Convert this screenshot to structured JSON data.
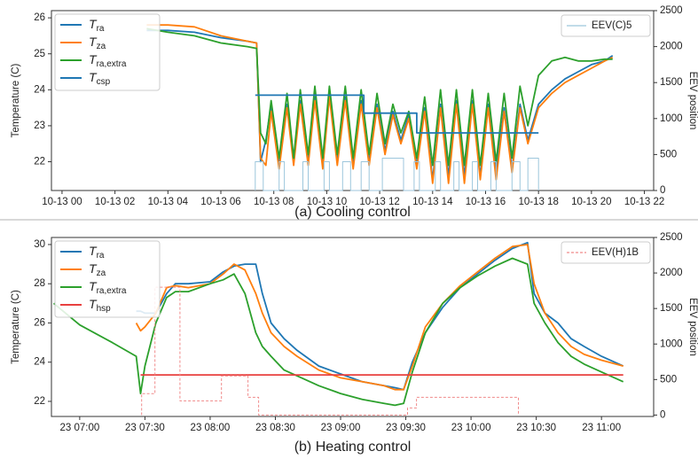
{
  "chart_data": [
    {
      "type": "line",
      "title": "(a) Cooling control",
      "ylabel": "Temperature (C)",
      "y2label": "EEV position",
      "label_style": "math",
      "xlim": [
        -0.4,
        22.35
      ],
      "xticks": [
        {
          "value": 0,
          "label": "10-13 00"
        },
        {
          "value": 2,
          "label": "10-13 02"
        },
        {
          "value": 4,
          "label": "10-13 04"
        },
        {
          "value": 6,
          "label": "10-13 06"
        },
        {
          "value": 8,
          "label": "10-13 08"
        },
        {
          "value": 10,
          "label": "10-13 10"
        },
        {
          "value": 12,
          "label": "10-13 12"
        },
        {
          "value": 14,
          "label": "10-13 14"
        },
        {
          "value": 16,
          "label": "10-13 16"
        },
        {
          "value": 18,
          "label": "10-13 18"
        },
        {
          "value": 20,
          "label": "10-13 20"
        },
        {
          "value": 22,
          "label": "10-13 22"
        }
      ],
      "ylim": [
        21.2,
        26.2
      ],
      "yticks": [
        22,
        23,
        24,
        25,
        26
      ],
      "y2lim": [
        0,
        2500
      ],
      "y2ticks": [
        0,
        500,
        1000,
        1500,
        2000,
        2500
      ],
      "x": [
        3.2,
        4.0,
        5.0,
        6.0,
        7.0,
        7.35,
        7.5,
        7.7,
        7.9,
        8.2,
        8.5,
        8.75,
        9.0,
        9.3,
        9.55,
        9.85,
        10.1,
        10.4,
        10.7,
        11.0,
        11.3,
        11.6,
        11.9,
        12.2,
        12.5,
        12.8,
        13.1,
        13.4,
        13.7,
        14.0,
        14.3,
        14.6,
        14.9,
        15.2,
        15.5,
        15.8,
        16.1,
        16.4,
        16.7,
        17.0,
        17.3,
        17.6,
        18.0,
        18.5,
        19.0,
        19.5,
        20.0,
        20.5,
        20.8
      ],
      "series": [
        {
          "name": "Tra",
          "color": "#1f77b4",
          "values": [
            25.65,
            25.65,
            25.6,
            25.45,
            25.35,
            25.3,
            22.0,
            22.6,
            23.6,
            21.9,
            23.6,
            22.0,
            23.7,
            22.0,
            23.8,
            21.9,
            23.9,
            22.0,
            23.8,
            21.9,
            23.7,
            22.0,
            23.6,
            22.3,
            23.4,
            22.6,
            23.3,
            21.9,
            23.5,
            21.5,
            23.6,
            21.6,
            23.7,
            21.6,
            23.7,
            21.6,
            23.6,
            21.7,
            23.5,
            21.8,
            23.6,
            22.6,
            23.6,
            24.0,
            24.3,
            24.5,
            24.7,
            24.8,
            24.95
          ]
        },
        {
          "name": "Tza",
          "color": "#ff7f0e",
          "values": [
            25.8,
            25.8,
            25.75,
            25.5,
            25.35,
            25.3,
            22.1,
            21.9,
            23.4,
            21.8,
            23.5,
            21.9,
            23.6,
            21.9,
            23.7,
            21.8,
            23.8,
            21.9,
            23.7,
            21.8,
            23.6,
            21.9,
            23.5,
            22.2,
            23.3,
            22.5,
            23.2,
            21.8,
            23.4,
            21.4,
            23.5,
            21.4,
            23.6,
            21.4,
            23.6,
            21.5,
            23.5,
            21.5,
            23.4,
            21.7,
            23.5,
            22.5,
            23.5,
            23.9,
            24.2,
            24.4,
            24.6,
            24.8,
            24.9
          ]
        },
        {
          "name": "Tra,extra",
          "color": "#2ca02c",
          "values": [
            25.7,
            25.6,
            25.5,
            25.3,
            25.2,
            25.15,
            22.8,
            22.5,
            23.7,
            22.1,
            23.9,
            22.1,
            24.0,
            22.2,
            24.1,
            22.1,
            24.1,
            22.2,
            24.1,
            22.1,
            24.0,
            22.2,
            23.9,
            22.5,
            23.6,
            22.8,
            23.4,
            22.1,
            23.8,
            21.9,
            24.0,
            21.9,
            24.0,
            21.9,
            24.0,
            21.9,
            23.9,
            22.0,
            23.9,
            22.1,
            24.1,
            23.0,
            24.4,
            24.8,
            24.9,
            24.8,
            24.8,
            24.85,
            24.85
          ]
        },
        {
          "name": "Tcsp",
          "color": "#1f77b4",
          "x": [
            7.3,
            11.4,
            11.4,
            13.4,
            13.4,
            18.0
          ],
          "values": [
            23.85,
            23.85,
            23.35,
            23.35,
            22.8,
            22.8
          ]
        },
        {
          "name": "EEV(C)5",
          "color": "#9cc6dc",
          "axis": "y2",
          "linestyle": "solid",
          "x": [
            7.3,
            7.3,
            7.6,
            7.6,
            8.2,
            8.2,
            8.4,
            8.4,
            9.1,
            9.1,
            9.3,
            9.3,
            9.9,
            9.9,
            10.1,
            10.1,
            10.6,
            10.6,
            10.9,
            10.9,
            11.3,
            11.3,
            11.6,
            11.6,
            12.1,
            12.1,
            12.9,
            12.9,
            13.3,
            13.3,
            13.5,
            13.5,
            14.1,
            14.1,
            14.3,
            14.3,
            14.8,
            14.8,
            15.0,
            15.0,
            15.5,
            15.5,
            15.7,
            15.7,
            16.2,
            16.2,
            16.4,
            16.4,
            17.0,
            17.0,
            17.3,
            17.3,
            17.6,
            17.6,
            18.0,
            18.0
          ],
          "values": [
            0,
            400,
            400,
            0,
            0,
            400,
            400,
            0,
            0,
            400,
            400,
            0,
            0,
            400,
            400,
            0,
            0,
            400,
            400,
            0,
            0,
            400,
            400,
            0,
            0,
            450,
            450,
            0,
            0,
            400,
            400,
            0,
            0,
            400,
            400,
            0,
            0,
            400,
            400,
            0,
            0,
            400,
            400,
            0,
            0,
            400,
            400,
            0,
            0,
            400,
            400,
            0,
            0,
            450,
            450,
            0
          ]
        }
      ]
    },
    {
      "type": "line",
      "title": "(b) Heating control",
      "ylabel": "Temperature (C)",
      "y2label": "EEV position",
      "label_style": "math",
      "xlim": [
        -13,
        264
      ],
      "xticks": [
        {
          "value": 0,
          "label": "23 07:00"
        },
        {
          "value": 30,
          "label": "23 07:30"
        },
        {
          "value": 60,
          "label": "23 08:00"
        },
        {
          "value": 90,
          "label": "23 08:30"
        },
        {
          "value": 120,
          "label": "23 09:00"
        },
        {
          "value": 150,
          "label": "23 09:30"
        },
        {
          "value": 180,
          "label": "23 10:00"
        },
        {
          "value": 210,
          "label": "23 10:30"
        },
        {
          "value": 240,
          "label": "23 11:00"
        }
      ],
      "ylim": [
        21.23,
        30.36
      ],
      "yticks": [
        22,
        24,
        26,
        28,
        30
      ],
      "y2lim": [
        -20,
        2500
      ],
      "y2ticks": [
        0,
        500,
        1000,
        1500,
        2000,
        2500
      ],
      "x": [
        -12,
        0,
        15,
        26,
        28,
        30,
        35,
        40,
        44,
        50,
        60,
        66,
        71,
        76,
        81,
        84,
        88,
        94,
        100,
        110,
        120,
        130,
        140,
        145,
        149,
        153,
        159,
        167,
        175,
        183,
        191,
        199,
        206,
        209,
        214,
        220,
        226,
        232,
        240,
        250
      ],
      "series": [
        {
          "name": "Tra",
          "color": "#1f77b4",
          "values": [
            null,
            null,
            null,
            26.6,
            26.6,
            26.5,
            26.5,
            27.5,
            28.0,
            28.0,
            28.1,
            28.6,
            28.9,
            29.0,
            29.0,
            27.5,
            26.0,
            25.2,
            24.6,
            23.8,
            23.4,
            23.0,
            22.8,
            22.7,
            22.6,
            24.0,
            25.5,
            26.8,
            27.8,
            28.5,
            29.2,
            29.8,
            30.1,
            27.5,
            26.5,
            26.0,
            25.2,
            24.8,
            24.3,
            23.8
          ]
        },
        {
          "name": "Tza",
          "color": "#ff7f0e",
          "values": [
            null,
            null,
            null,
            26.0,
            25.6,
            25.8,
            26.5,
            27.8,
            27.9,
            27.8,
            28.0,
            28.5,
            29.0,
            28.7,
            27.5,
            26.5,
            25.5,
            24.8,
            24.3,
            23.6,
            23.2,
            23.0,
            22.8,
            22.6,
            22.6,
            23.8,
            25.8,
            27.0,
            27.9,
            28.6,
            29.3,
            29.9,
            30.0,
            28.0,
            26.5,
            25.5,
            24.8,
            24.4,
            24.1,
            23.8
          ]
        },
        {
          "name": "Tra,extra",
          "color": "#2ca02c",
          "values": [
            27.0,
            25.9,
            25.0,
            24.3,
            22.4,
            23.8,
            26.0,
            27.3,
            27.6,
            27.6,
            28.0,
            28.2,
            28.5,
            27.5,
            25.5,
            24.8,
            24.3,
            23.6,
            23.3,
            22.8,
            22.4,
            22.1,
            21.9,
            21.8,
            21.9,
            23.5,
            25.5,
            27.0,
            27.8,
            28.4,
            28.9,
            29.3,
            29.0,
            27.0,
            26.0,
            25.0,
            24.3,
            23.9,
            23.5,
            23.0
          ]
        },
        {
          "name": "Thsp",
          "color": "#e8403f",
          "x": [
            28,
            250
          ],
          "values": [
            23.35,
            23.35
          ]
        },
        {
          "name": "EEV(H)1B",
          "color": "#f08a8a",
          "axis": "y2",
          "linestyle": "dashed",
          "x": [
            28.5,
            28.5,
            34.6,
            34.6,
            46.1,
            46.1,
            65.2,
            65.2,
            77.4,
            77.4,
            82.3,
            82.3,
            150.8,
            150.8,
            154.9,
            154.9,
            201.8,
            201.8
          ],
          "values": [
            0,
            300,
            300,
            1800,
            1800,
            200,
            200,
            550,
            550,
            250,
            250,
            0,
            0,
            100,
            100,
            250,
            250,
            0
          ]
        }
      ]
    }
  ]
}
